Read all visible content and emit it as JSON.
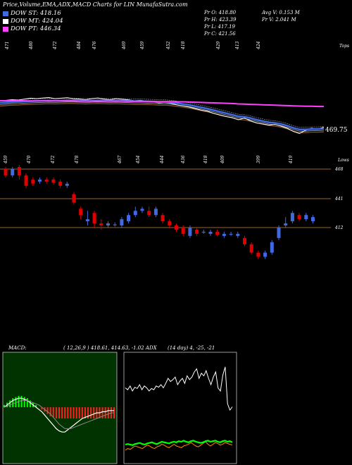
{
  "header": {
    "title": "Price,Volume,EMA,ADX,MACD Charts for LIN",
    "site": "MunafaSutra.com"
  },
  "legend": [
    {
      "label": "DOW ST: 418.16",
      "color": "#4169e1"
    },
    {
      "label": "DOW MT: 424.04",
      "color": "#ffffff"
    },
    {
      "label": "DOW PT: 446.34",
      "color": "#ff40ff"
    }
  ],
  "stats": {
    "pr_o": "Pr O: 418.80",
    "pr_h": "Pr H: 423.39",
    "pr_l": "Pr L: 417.19",
    "pr_c": "Pr C: 421.56",
    "avg_v": "Avg V: 0.153 M",
    "pr_v": "Pr V: 2.041 M"
  },
  "labels": {
    "tops": "Tops",
    "lows": "Lows",
    "last_price": "469.75",
    "macd_label": "MACD:",
    "macd_values": "( 12,26,9 ) 418.61, 414.63, -1.02 ADX",
    "adx_values": "(14 day) 4, -25, -21"
  },
  "top_ticks": [
    "471",
    "480",
    "472",
    "484",
    "476",
    "469",
    "459",
    "452",
    "418",
    "429",
    "413",
    "424"
  ],
  "low_ticks": [
    "459",
    "470",
    "472",
    "478",
    "467",
    "454",
    "444",
    "436",
    "418",
    "409",
    "399",
    "419"
  ],
  "price_levels": [
    "468",
    "441",
    "412"
  ],
  "chart_data": [
    {
      "type": "line",
      "name": "ema-panel",
      "series": [
        {
          "color": "#ffffff",
          "values": [
            0.62,
            0.58,
            0.55,
            0.57,
            0.52,
            0.48,
            0.5,
            0.47,
            0.45,
            0.5,
            0.48,
            0.46,
            0.5,
            0.52,
            0.55,
            0.5,
            0.47,
            0.52,
            0.55,
            0.5,
            0.53,
            0.56,
            0.6,
            0.58,
            0.62,
            0.65,
            0.7,
            0.68,
            0.72,
            0.8,
            0.85,
            0.9,
            0.98,
            1.05,
            1.1,
            1.2,
            1.28,
            1.35,
            1.4,
            1.5,
            1.42,
            1.55,
            1.65,
            1.7,
            1.75,
            1.72,
            1.8,
            1.9,
            2.05,
            2.15,
            2.0,
            1.9,
            1.95,
            1.85
          ]
        },
        {
          "color": "#4169e1",
          "values": [
            0.7,
            0.68,
            0.66,
            0.65,
            0.63,
            0.62,
            0.61,
            0.6,
            0.59,
            0.6,
            0.59,
            0.58,
            0.58,
            0.59,
            0.6,
            0.59,
            0.58,
            0.59,
            0.6,
            0.59,
            0.6,
            0.61,
            0.62,
            0.62,
            0.63,
            0.64,
            0.66,
            0.66,
            0.68,
            0.72,
            0.76,
            0.8,
            0.86,
            0.92,
            0.98,
            1.05,
            1.12,
            1.19,
            1.26,
            1.34,
            1.36,
            1.42,
            1.5,
            1.56,
            1.62,
            1.65,
            1.7,
            1.78,
            1.88,
            1.96,
            1.96,
            1.94,
            1.94,
            1.92
          ]
        },
        {
          "color": "#ff40ff",
          "values": [
            0.6,
            0.6,
            0.6,
            0.6,
            0.6,
            0.61,
            0.61,
            0.61,
            0.61,
            0.61,
            0.61,
            0.61,
            0.61,
            0.62,
            0.62,
            0.62,
            0.62,
            0.62,
            0.62,
            0.62,
            0.62,
            0.63,
            0.63,
            0.63,
            0.63,
            0.63,
            0.64,
            0.64,
            0.64,
            0.65,
            0.65,
            0.66,
            0.67,
            0.68,
            0.69,
            0.7,
            0.71,
            0.72,
            0.73,
            0.75,
            0.76,
            0.77,
            0.78,
            0.79,
            0.8,
            0.81,
            0.82,
            0.83,
            0.84,
            0.85,
            0.86,
            0.86,
            0.87,
            0.87
          ]
        }
      ]
    },
    {
      "type": "bar",
      "name": "candles",
      "candles": [
        {
          "o": 468,
          "c": 462,
          "h": 470,
          "l": 460
        },
        {
          "o": 462,
          "c": 468,
          "h": 470,
          "l": 460
        },
        {
          "o": 470,
          "c": 462,
          "h": 472,
          "l": 458
        },
        {
          "o": 462,
          "c": 452,
          "h": 464,
          "l": 450
        },
        {
          "o": 458,
          "c": 454,
          "h": 460,
          "l": 452
        },
        {
          "o": 456,
          "c": 458,
          "h": 460,
          "l": 454
        },
        {
          "o": 458,
          "c": 456,
          "h": 460,
          "l": 454
        },
        {
          "o": 458,
          "c": 455,
          "h": 460,
          "l": 453
        },
        {
          "o": 456,
          "c": 452,
          "h": 458,
          "l": 450
        },
        {
          "o": 452,
          "c": 454,
          "h": 456,
          "l": 450
        },
        {
          "o": 444,
          "c": 436,
          "h": 446,
          "l": 434
        },
        {
          "o": 430,
          "c": 424,
          "h": 432,
          "l": 420
        },
        {
          "o": 418,
          "c": 420,
          "h": 428,
          "l": 414
        },
        {
          "o": 426,
          "c": 416,
          "h": 428,
          "l": 412
        },
        {
          "o": 416,
          "c": 414,
          "h": 420,
          "l": 410
        },
        {
          "o": 414,
          "c": 416,
          "h": 418,
          "l": 412
        },
        {
          "o": 415,
          "c": 415,
          "h": 417,
          "l": 413
        },
        {
          "o": 414,
          "c": 420,
          "h": 422,
          "l": 412
        },
        {
          "o": 418,
          "c": 424,
          "h": 426,
          "l": 416
        },
        {
          "o": 424,
          "c": 428,
          "h": 432,
          "l": 422
        },
        {
          "o": 428,
          "c": 430,
          "h": 432,
          "l": 426
        },
        {
          "o": 428,
          "c": 424,
          "h": 432,
          "l": 422
        },
        {
          "o": 424,
          "c": 430,
          "h": 432,
          "l": 422
        },
        {
          "o": 424,
          "c": 418,
          "h": 426,
          "l": 416
        },
        {
          "o": 418,
          "c": 414,
          "h": 420,
          "l": 412
        },
        {
          "o": 414,
          "c": 410,
          "h": 416,
          "l": 408
        },
        {
          "o": 412,
          "c": 406,
          "h": 414,
          "l": 404
        },
        {
          "o": 404,
          "c": 412,
          "h": 414,
          "l": 402
        },
        {
          "o": 410,
          "c": 406,
          "h": 412,
          "l": 404
        },
        {
          "o": 408,
          "c": 408,
          "h": 410,
          "l": 406
        },
        {
          "o": 406,
          "c": 408,
          "h": 410,
          "l": 404
        },
        {
          "o": 408,
          "c": 405,
          "h": 410,
          "l": 404
        },
        {
          "o": 404,
          "c": 406,
          "h": 408,
          "l": 402
        },
        {
          "o": 406,
          "c": 406,
          "h": 408,
          "l": 404
        },
        {
          "o": 404,
          "c": 406,
          "h": 408,
          "l": 402
        },
        {
          "o": 402,
          "c": 396,
          "h": 404,
          "l": 394
        },
        {
          "o": 396,
          "c": 388,
          "h": 398,
          "l": 386
        },
        {
          "o": 388,
          "c": 384,
          "h": 390,
          "l": 382
        },
        {
          "o": 384,
          "c": 388,
          "h": 390,
          "l": 382
        },
        {
          "o": 388,
          "c": 398,
          "h": 400,
          "l": 386
        },
        {
          "o": 402,
          "c": 412,
          "h": 414,
          "l": 400
        },
        {
          "o": 414,
          "c": 416,
          "h": 422,
          "l": 412
        },
        {
          "o": 418,
          "c": 426,
          "h": 428,
          "l": 416
        },
        {
          "o": 424,
          "c": 420,
          "h": 426,
          "l": 418
        },
        {
          "o": 420,
          "c": 424,
          "h": 426,
          "l": 418
        },
        {
          "o": 418,
          "c": 422,
          "h": 424,
          "l": 416
        }
      ]
    },
    {
      "type": "line",
      "name": "macd",
      "histogram": [
        2,
        4,
        6,
        8,
        9,
        10,
        10,
        9,
        8,
        6,
        4,
        2,
        0,
        -2,
        -4,
        -6,
        -8,
        -9,
        -10,
        -10,
        -10,
        -10,
        -10,
        -10,
        -10,
        -10,
        -10,
        -10,
        -10,
        -10,
        -10,
        -10,
        -10,
        -10,
        -10,
        -10,
        -10,
        -10,
        -10
      ],
      "macd_line": [
        0,
        2,
        4,
        6,
        7,
        8,
        8,
        7,
        6,
        4,
        2,
        0,
        -2,
        -4,
        -7,
        -10,
        -13,
        -16,
        -19,
        -21,
        -22,
        -22,
        -20,
        -18,
        -16,
        -14,
        -12,
        -10,
        -9,
        -8,
        -7,
        -6,
        -5,
        -5,
        -4,
        -4,
        -3,
        -3,
        -3
      ],
      "signal_line": [
        0,
        1,
        2,
        3,
        4,
        5,
        6,
        6,
        6,
        5,
        4,
        3,
        2,
        0,
        -2,
        -4,
        -6,
        -9,
        -12,
        -15,
        -17,
        -19,
        -19,
        -19,
        -18,
        -17,
        -16,
        -15,
        -14,
        -13,
        -12,
        -11,
        -10,
        -9,
        -8,
        -7,
        -6,
        -5,
        -5
      ]
    },
    {
      "type": "line",
      "name": "adx",
      "series": [
        {
          "color": "#ffffff",
          "values": [
            55,
            52,
            58,
            50,
            56,
            54,
            60,
            52,
            58,
            55,
            50,
            54,
            52,
            58,
            56,
            60,
            55,
            62,
            70,
            65,
            68,
            72,
            60,
            66,
            70,
            62,
            74,
            68,
            72,
            80,
            85,
            70,
            78,
            74,
            82,
            70,
            60,
            72,
            80,
            55,
            50,
            75,
            88,
            30,
            20,
            25
          ]
        },
        {
          "color": "#ff8c00",
          "values": [
            5,
            7,
            6,
            8,
            10,
            9,
            8,
            7,
            9,
            11,
            10,
            8,
            7,
            9,
            10,
            12,
            11,
            9,
            8,
            10,
            12,
            10,
            9,
            8,
            10,
            11,
            12,
            14,
            12,
            10,
            9,
            11,
            13,
            15,
            12,
            10,
            12,
            14,
            13,
            11,
            12,
            14,
            13,
            12,
            11
          ]
        },
        {
          "color": "#00ff00",
          "values": [
            -5,
            -6,
            -5,
            -4,
            -6,
            -7,
            -8,
            -6,
            -5,
            -7,
            -8,
            -9,
            -7,
            -6,
            -8,
            -10,
            -9,
            -8,
            -7,
            -9,
            -10,
            -9,
            -11,
            -10,
            -12,
            -10,
            -9,
            -11,
            -12,
            -10,
            -9,
            -8,
            -9,
            -11,
            -12,
            -10,
            -11,
            -12,
            -10,
            -9,
            -11,
            -12,
            -10,
            -11,
            -9
          ]
        }
      ]
    }
  ]
}
